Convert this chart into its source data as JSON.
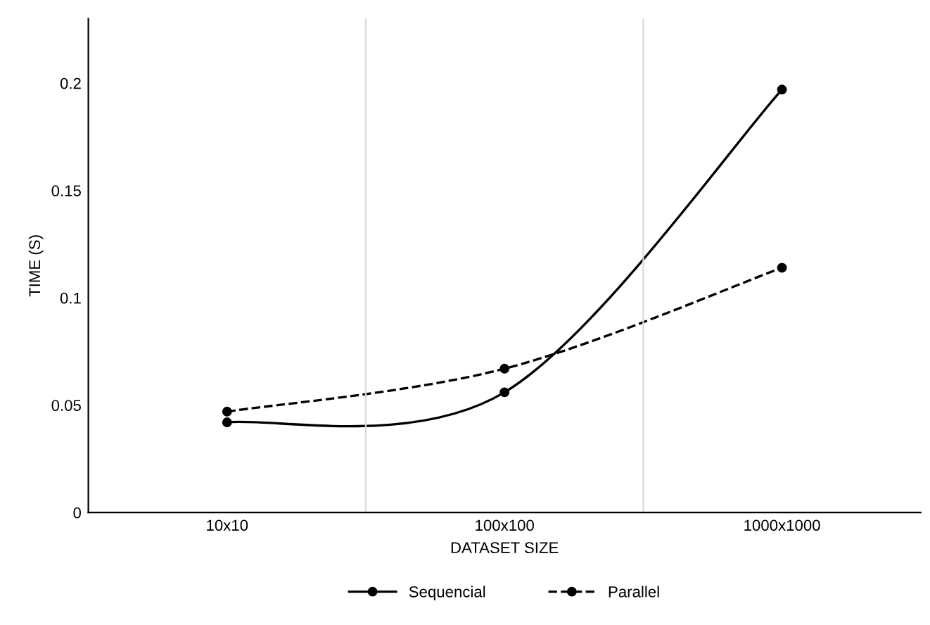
{
  "chart_data": {
    "type": "line",
    "xlabel": "DATASET SIZE",
    "ylabel": "TIME (S)",
    "categories": [
      "10x10",
      "100x100",
      "1000x1000"
    ],
    "series": [
      {
        "name": "Sequencial",
        "color": "#000000",
        "values": [
          0.042,
          0.056,
          0.197
        ],
        "line_style": "solid"
      },
      {
        "name": "Parallel",
        "color": "#000000",
        "values": [
          0.047,
          0.067,
          0.114
        ],
        "line_style": "dashed"
      }
    ],
    "ylim": [
      0,
      0.23
    ],
    "yticks": [
      0,
      0.05,
      0.1,
      0.15,
      0.2
    ],
    "grid": "x",
    "legend": "bottom",
    "marker": "circle"
  }
}
